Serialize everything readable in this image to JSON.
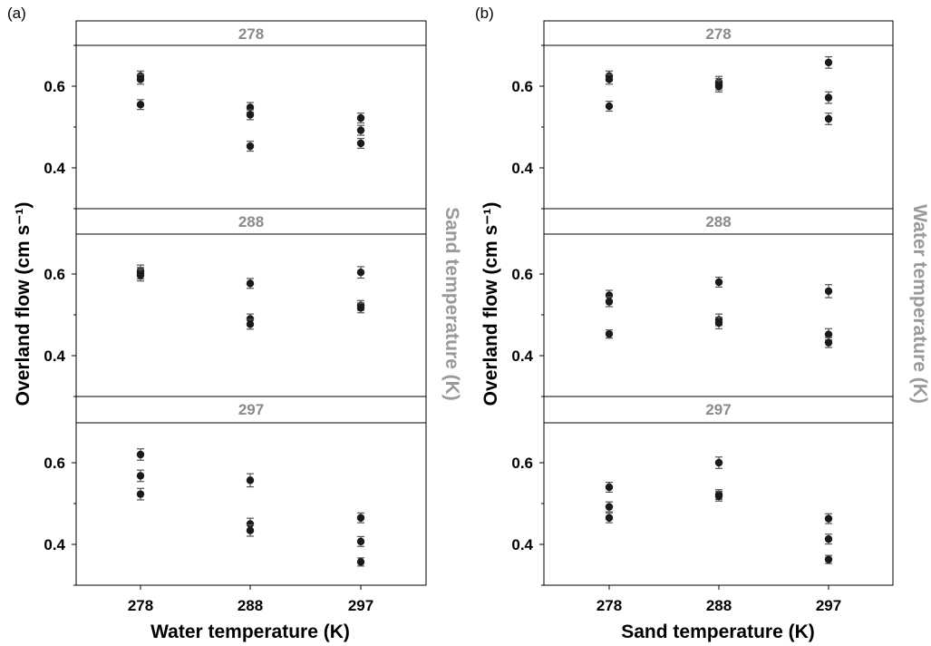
{
  "figure": {
    "panel_labels": [
      "(a)",
      "(b)"
    ],
    "colors": {
      "points": "#1a1a1a",
      "facet_label": "#8a8a8a",
      "side_label": "#9a9a9a",
      "axes": "#000000"
    }
  },
  "chart_data": [
    {
      "type": "scatter",
      "panel": "(a)",
      "xlabel": "Water temperature (K)",
      "ylabel": "Overland flow (cm s⁻¹)",
      "side_label": "Sand temperature (K)",
      "categories": [
        "278",
        "288",
        "297"
      ],
      "ylim": [
        0.3,
        0.7
      ],
      "yticks": [
        0.4,
        0.6
      ],
      "yticklabels": [
        "0.4",
        "0.6"
      ],
      "facets": [
        {
          "label": "278",
          "points": [
            {
              "x": "278",
              "y": 0.625,
              "err": 0.012
            },
            {
              "x": "278",
              "y": 0.617,
              "err": 0.012
            },
            {
              "x": "278",
              "y": 0.555,
              "err": 0.012
            },
            {
              "x": "288",
              "y": 0.548,
              "err": 0.012
            },
            {
              "x": "288",
              "y": 0.53,
              "err": 0.012
            },
            {
              "x": "288",
              "y": 0.453,
              "err": 0.012
            },
            {
              "x": "297",
              "y": 0.522,
              "err": 0.012
            },
            {
              "x": "297",
              "y": 0.492,
              "err": 0.012
            },
            {
              "x": "297",
              "y": 0.46,
              "err": 0.012
            }
          ]
        },
        {
          "label": "288",
          "points": [
            {
              "x": "278",
              "y": 0.608,
              "err": 0.014
            },
            {
              "x": "278",
              "y": 0.602,
              "err": 0.014
            },
            {
              "x": "278",
              "y": 0.597,
              "err": 0.014
            },
            {
              "x": "288",
              "y": 0.577,
              "err": 0.012
            },
            {
              "x": "288",
              "y": 0.49,
              "err": 0.012
            },
            {
              "x": "288",
              "y": 0.477,
              "err": 0.012
            },
            {
              "x": "297",
              "y": 0.604,
              "err": 0.014
            },
            {
              "x": "297",
              "y": 0.523,
              "err": 0.012
            },
            {
              "x": "297",
              "y": 0.517,
              "err": 0.012
            }
          ]
        },
        {
          "label": "297",
          "points": [
            {
              "x": "278",
              "y": 0.62,
              "err": 0.014
            },
            {
              "x": "278",
              "y": 0.568,
              "err": 0.014
            },
            {
              "x": "278",
              "y": 0.523,
              "err": 0.014
            },
            {
              "x": "288",
              "y": 0.557,
              "err": 0.016
            },
            {
              "x": "288",
              "y": 0.45,
              "err": 0.014
            },
            {
              "x": "288",
              "y": 0.434,
              "err": 0.014
            },
            {
              "x": "297",
              "y": 0.465,
              "err": 0.012
            },
            {
              "x": "297",
              "y": 0.407,
              "err": 0.012
            },
            {
              "x": "297",
              "y": 0.357,
              "err": 0.01
            }
          ]
        }
      ]
    },
    {
      "type": "scatter",
      "panel": "(b)",
      "xlabel": "Sand temperature (K)",
      "ylabel": "Overland flow (cm s⁻¹)",
      "side_label": "Water temperature (K)",
      "categories": [
        "278",
        "288",
        "297"
      ],
      "ylim": [
        0.3,
        0.7
      ],
      "yticks": [
        0.4,
        0.6
      ],
      "yticklabels": [
        "0.4",
        "0.6"
      ],
      "facets": [
        {
          "label": "278",
          "points": [
            {
              "x": "278",
              "y": 0.625,
              "err": 0.012
            },
            {
              "x": "278",
              "y": 0.617,
              "err": 0.012
            },
            {
              "x": "278",
              "y": 0.551,
              "err": 0.012
            },
            {
              "x": "288",
              "y": 0.61,
              "err": 0.014
            },
            {
              "x": "288",
              "y": 0.605,
              "err": 0.014
            },
            {
              "x": "288",
              "y": 0.6,
              "err": 0.014
            },
            {
              "x": "297",
              "y": 0.658,
              "err": 0.014
            },
            {
              "x": "297",
              "y": 0.572,
              "err": 0.014
            },
            {
              "x": "297",
              "y": 0.52,
              "err": 0.014
            }
          ]
        },
        {
          "label": "288",
          "points": [
            {
              "x": "278",
              "y": 0.548,
              "err": 0.012
            },
            {
              "x": "278",
              "y": 0.532,
              "err": 0.012
            },
            {
              "x": "278",
              "y": 0.453,
              "err": 0.01
            },
            {
              "x": "288",
              "y": 0.58,
              "err": 0.012
            },
            {
              "x": "288",
              "y": 0.488,
              "err": 0.014
            },
            {
              "x": "288",
              "y": 0.48,
              "err": 0.014
            },
            {
              "x": "297",
              "y": 0.558,
              "err": 0.016
            },
            {
              "x": "297",
              "y": 0.452,
              "err": 0.014
            },
            {
              "x": "297",
              "y": 0.432,
              "err": 0.012
            }
          ]
        },
        {
          "label": "297",
          "points": [
            {
              "x": "278",
              "y": 0.54,
              "err": 0.012
            },
            {
              "x": "278",
              "y": 0.492,
              "err": 0.012
            },
            {
              "x": "278",
              "y": 0.465,
              "err": 0.012
            },
            {
              "x": "288",
              "y": 0.6,
              "err": 0.014
            },
            {
              "x": "288",
              "y": 0.522,
              "err": 0.012
            },
            {
              "x": "288",
              "y": 0.518,
              "err": 0.012
            },
            {
              "x": "297",
              "y": 0.463,
              "err": 0.012
            },
            {
              "x": "297",
              "y": 0.413,
              "err": 0.012
            },
            {
              "x": "297",
              "y": 0.363,
              "err": 0.01
            }
          ]
        }
      ]
    }
  ]
}
